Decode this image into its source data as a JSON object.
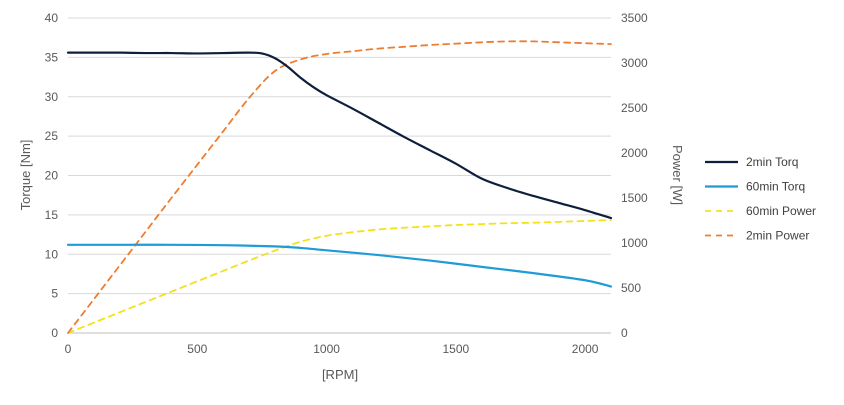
{
  "chart_data": {
    "type": "line",
    "title": "",
    "xlabel": "[RPM]",
    "ylabel": "Torque [Nm]",
    "y2label": "Power [W]",
    "xlim": [
      0,
      2100
    ],
    "ylim": [
      0,
      40
    ],
    "y2lim": [
      0,
      3500
    ],
    "x_ticks": [
      "0",
      "500",
      "1000",
      "1500",
      "2000"
    ],
    "x_tick_values": [
      0,
      500,
      1000,
      1500,
      2000
    ],
    "y_ticks": [
      "0",
      "5",
      "10",
      "15",
      "20",
      "25",
      "30",
      "35",
      "40"
    ],
    "y_tick_values": [
      0,
      5,
      10,
      15,
      20,
      25,
      30,
      35,
      40
    ],
    "y2_ticks": [
      "0",
      "500",
      "1000",
      "1500",
      "2000",
      "2500",
      "3000",
      "3500"
    ],
    "y2_tick_values": [
      0,
      500,
      1000,
      1500,
      2000,
      2500,
      3000,
      3500
    ],
    "grid": true,
    "legend_position": "right",
    "series": [
      {
        "name": "2min Torq",
        "axis": "left",
        "color": "#0e1f3d",
        "dash": "solid",
        "points": [
          [
            0,
            35.6
          ],
          [
            100,
            35.6
          ],
          [
            200,
            35.6
          ],
          [
            300,
            35.55
          ],
          [
            400,
            35.55
          ],
          [
            500,
            35.5
          ],
          [
            600,
            35.55
          ],
          [
            700,
            35.6
          ],
          [
            750,
            35.5
          ],
          [
            800,
            34.9
          ],
          [
            850,
            33.8
          ],
          [
            900,
            32.4
          ],
          [
            950,
            31.2
          ],
          [
            1000,
            30.2
          ],
          [
            1100,
            28.5
          ],
          [
            1200,
            26.7
          ],
          [
            1300,
            24.9
          ],
          [
            1400,
            23.2
          ],
          [
            1500,
            21.5
          ],
          [
            1600,
            19.6
          ],
          [
            1700,
            18.4
          ],
          [
            1800,
            17.4
          ],
          [
            1900,
            16.5
          ],
          [
            2000,
            15.6
          ],
          [
            2100,
            14.6
          ]
        ]
      },
      {
        "name": "60min Torq",
        "axis": "left",
        "color": "#1f9bd7",
        "dash": "solid",
        "points": [
          [
            0,
            11.2
          ],
          [
            200,
            11.2
          ],
          [
            400,
            11.2
          ],
          [
            600,
            11.15
          ],
          [
            800,
            11.0
          ],
          [
            900,
            10.8
          ],
          [
            1000,
            10.5
          ],
          [
            1200,
            9.9
          ],
          [
            1400,
            9.2
          ],
          [
            1600,
            8.4
          ],
          [
            1800,
            7.6
          ],
          [
            2000,
            6.7
          ],
          [
            2100,
            5.9
          ]
        ]
      },
      {
        "name": "60min Power",
        "axis": "right",
        "color": "#f2e21a",
        "dash": "dashed",
        "points": [
          [
            0,
            0
          ],
          [
            100,
            115
          ],
          [
            200,
            230
          ],
          [
            300,
            345
          ],
          [
            400,
            460
          ],
          [
            500,
            575
          ],
          [
            600,
            690
          ],
          [
            700,
            805
          ],
          [
            800,
            915
          ],
          [
            900,
            1015
          ],
          [
            1000,
            1080
          ],
          [
            1100,
            1120
          ],
          [
            1200,
            1150
          ],
          [
            1300,
            1170
          ],
          [
            1400,
            1185
          ],
          [
            1500,
            1200
          ],
          [
            1600,
            1210
          ],
          [
            1700,
            1220
          ],
          [
            1800,
            1225
          ],
          [
            1900,
            1235
          ],
          [
            2000,
            1245
          ],
          [
            2100,
            1255
          ]
        ]
      },
      {
        "name": "2min Power",
        "axis": "right",
        "color": "#ed7d31",
        "dash": "dashed",
        "points": [
          [
            0,
            0
          ],
          [
            100,
            375
          ],
          [
            200,
            750
          ],
          [
            300,
            1125
          ],
          [
            400,
            1500
          ],
          [
            500,
            1870
          ],
          [
            600,
            2240
          ],
          [
            700,
            2610
          ],
          [
            800,
            2910
          ],
          [
            900,
            3040
          ],
          [
            1000,
            3100
          ],
          [
            1100,
            3130
          ],
          [
            1200,
            3160
          ],
          [
            1300,
            3180
          ],
          [
            1400,
            3200
          ],
          [
            1500,
            3215
          ],
          [
            1600,
            3230
          ],
          [
            1700,
            3240
          ],
          [
            1800,
            3240
          ],
          [
            1900,
            3230
          ],
          [
            2000,
            3220
          ],
          [
            2100,
            3210
          ]
        ]
      }
    ]
  }
}
